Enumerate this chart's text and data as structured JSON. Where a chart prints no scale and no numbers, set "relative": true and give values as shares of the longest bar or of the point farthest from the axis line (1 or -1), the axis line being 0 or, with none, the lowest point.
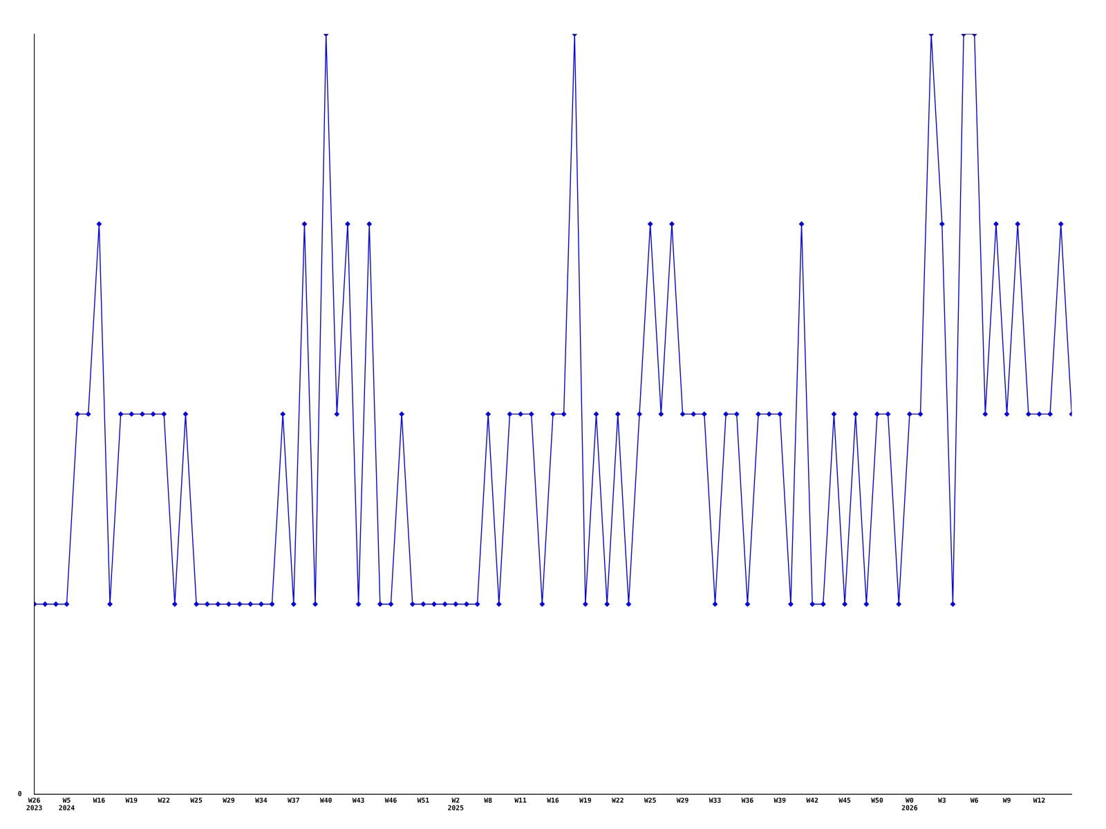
{
  "chart_data": {
    "type": "line",
    "relative": true,
    "annotations": [
      "0"
    ],
    "marker": "diamond",
    "line_style": "solid",
    "grid": false,
    "legend": false,
    "categories": [
      "W26\n2023",
      null,
      null,
      "W5\n2024",
      null,
      null,
      "W16",
      null,
      null,
      "W19",
      null,
      null,
      "W22",
      null,
      null,
      "W25",
      null,
      null,
      "W29",
      null,
      null,
      "W34",
      null,
      null,
      "W37",
      null,
      null,
      "W40",
      null,
      null,
      "W43",
      null,
      null,
      "W46",
      null,
      null,
      "W51",
      null,
      null,
      "W2\n2025",
      null,
      null,
      "W8",
      null,
      null,
      "W11",
      null,
      null,
      "W16",
      null,
      null,
      "W19",
      null,
      null,
      "W22",
      null,
      null,
      "W25",
      null,
      null,
      "W29",
      null,
      null,
      "W33",
      null,
      null,
      "W36",
      null,
      null,
      "W39",
      null,
      null,
      "W42",
      null,
      null,
      "W45",
      null,
      null,
      "W50",
      null,
      null,
      "W0\n2026",
      null,
      null,
      "W3",
      null,
      null,
      "W6",
      null,
      null,
      "W9",
      null,
      null,
      "W12",
      null,
      null,
      null
    ],
    "series": [
      {
        "color": "#0000ff",
        "values": [
          0.25,
          0.25,
          0.25,
          0.25,
          0.5,
          0.5,
          0.75,
          0.25,
          0.5,
          0.5,
          0.5,
          0.5,
          0.5,
          0.25,
          0.5,
          0.25,
          0.25,
          0.25,
          0.25,
          0.25,
          0.25,
          0.25,
          0.25,
          0.5,
          0.25,
          0.75,
          0.25,
          1,
          0.5,
          0.75,
          0.25,
          0.75,
          0.25,
          0.25,
          0.5,
          0.25,
          0.25,
          0.25,
          0.25,
          0.25,
          0.25,
          0.25,
          0.5,
          0.25,
          0.5,
          0.5,
          0.5,
          0.25,
          0.5,
          0.5,
          1,
          0.25,
          0.5,
          0.25,
          0.5,
          0.25,
          0.5,
          0.75,
          0.5,
          0.75,
          0.5,
          0.5,
          0.5,
          0.25,
          0.5,
          0.5,
          0.25,
          0.5,
          0.5,
          0.5,
          0.25,
          0.75,
          0.25,
          0.25,
          0.5,
          0.25,
          0.5,
          0.25,
          0.5,
          0.5,
          0.25,
          0.5,
          0.5,
          1,
          0.75,
          0.25,
          1,
          1,
          0.5,
          0.75,
          0.5,
          0.75,
          0.5,
          0.5,
          0.5,
          0.75,
          0.5
        ]
      }
    ]
  }
}
